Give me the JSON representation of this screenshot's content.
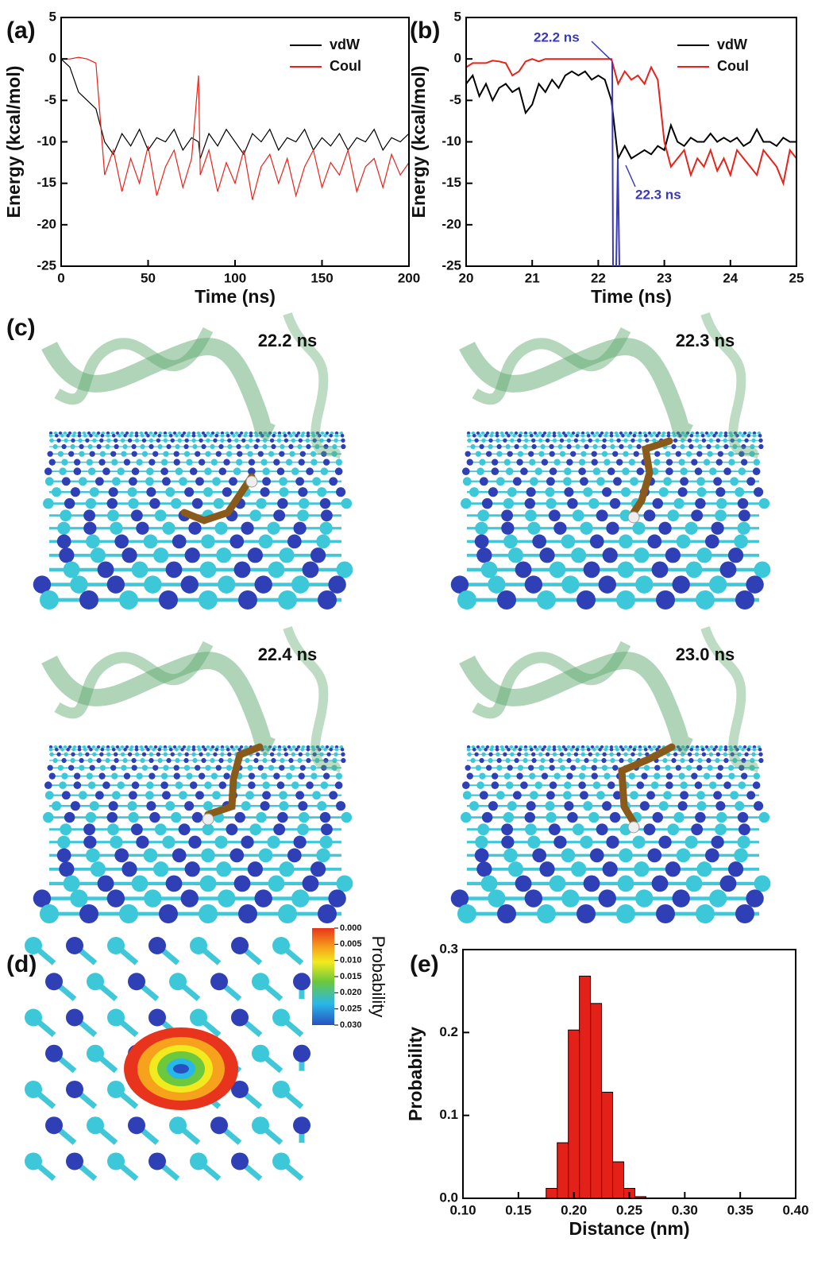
{
  "chart_data": [
    {
      "type": "line",
      "panel_label": "(a)",
      "xlabel": "Time (ns)",
      "ylabel": "Energy (kcal/mol)",
      "x": [
        0,
        5,
        10,
        15,
        20,
        25,
        30,
        35,
        40,
        45,
        50,
        55,
        60,
        65,
        70,
        75,
        79,
        80,
        85,
        90,
        95,
        100,
        105,
        110,
        115,
        120,
        125,
        130,
        135,
        140,
        145,
        150,
        155,
        160,
        165,
        170,
        175,
        180,
        185,
        190,
        195,
        200
      ],
      "series": [
        {
          "name": "vdW",
          "color": "#000000",
          "values": [
            0,
            -1,
            -4,
            -5,
            -6,
            -10,
            -11.5,
            -9,
            -10.5,
            -8.5,
            -11,
            -9.5,
            -10,
            -8.5,
            -11,
            -9.5,
            -10,
            -12,
            -9,
            -10.5,
            -8.5,
            -10,
            -11.5,
            -9,
            -10,
            -8.5,
            -11,
            -9.5,
            -10,
            -8.5,
            -11,
            -9.5,
            -10.5,
            -9,
            -11,
            -9.5,
            -10,
            -8.5,
            -11,
            -9.5,
            -10,
            -9
          ]
        },
        {
          "name": "Coul",
          "color": "#e8221a",
          "values": [
            0,
            0,
            0.2,
            0,
            -0.5,
            -14,
            -11,
            -16,
            -12,
            -15,
            -10.5,
            -16.5,
            -13,
            -11,
            -15.5,
            -12,
            -2,
            -14,
            -11,
            -16,
            -12.5,
            -15,
            -11,
            -17,
            -13,
            -11.5,
            -15,
            -12,
            -16.5,
            -13,
            -11,
            -15.5,
            -12.5,
            -14,
            -11,
            -16,
            -13,
            -12,
            -15.5,
            -11.5,
            -14,
            -12.5
          ]
        }
      ],
      "xlim": [
        0,
        200
      ],
      "xticks": [
        0,
        50,
        100,
        150,
        200
      ],
      "ylim": [
        -25,
        5
      ],
      "yticks": [
        -25,
        -20,
        -15,
        -10,
        -5,
        0,
        5
      ],
      "legend": "upper right"
    },
    {
      "type": "line",
      "panel_label": "(b)",
      "xlabel": "Time (ns)",
      "ylabel": "Energy (kcal/mol)",
      "x": [
        20,
        20.1,
        20.2,
        20.3,
        20.4,
        20.5,
        20.6,
        20.7,
        20.8,
        20.9,
        21,
        21.1,
        21.2,
        21.3,
        21.4,
        21.5,
        21.6,
        21.7,
        21.8,
        21.9,
        22,
        22.1,
        22.2,
        22.3,
        22.4,
        22.5,
        22.6,
        22.7,
        22.8,
        22.9,
        23,
        23.1,
        23.2,
        23.3,
        23.4,
        23.5,
        23.6,
        23.7,
        23.8,
        23.9,
        24,
        24.1,
        24.2,
        24.3,
        24.4,
        24.5,
        24.6,
        24.7,
        24.8,
        24.9,
        25
      ],
      "series": [
        {
          "name": "vdW",
          "color": "#000000",
          "values": [
            -3,
            -2,
            -4.5,
            -3,
            -5,
            -3.5,
            -3,
            -4,
            -3.5,
            -6.5,
            -5.5,
            -3,
            -4,
            -2.5,
            -3.5,
            -2,
            -1.5,
            -2,
            -1.5,
            -2.5,
            -2,
            -2.5,
            -5,
            -12,
            -10.5,
            -12,
            -11.5,
            -11,
            -11.5,
            -10.5,
            -11,
            -8,
            -10,
            -10.5,
            -9.5,
            -10,
            -10,
            -9,
            -10,
            -9.5,
            -10,
            -9.5,
            -10.5,
            -10,
            -8.5,
            -10,
            -10,
            -10.5,
            -9.5,
            -10,
            -10
          ]
        },
        {
          "name": "Coul",
          "color": "#e8221a",
          "values": [
            -1,
            -0.5,
            -0.5,
            -0.5,
            -0.2,
            -0.3,
            -0.5,
            -2,
            -1.5,
            -0.3,
            0,
            -0.3,
            0,
            0,
            0,
            0,
            0,
            0,
            0,
            0,
            0,
            0,
            0,
            -3,
            -1.5,
            -2.5,
            -2,
            -3,
            -1,
            -2.5,
            -10,
            -13,
            -12,
            -11,
            -14,
            -12,
            -13,
            -11,
            -13.5,
            -12,
            -14,
            -11,
            -12,
            -13,
            -14,
            -11,
            -12,
            -13,
            -15,
            -11,
            -12
          ]
        }
      ],
      "annotations": [
        "22.2 ns",
        "22.3 ns"
      ],
      "xlim": [
        20,
        25
      ],
      "xticks": [
        20,
        21,
        22,
        23,
        24,
        25
      ],
      "ylim": [
        -25,
        5
      ],
      "yticks": [
        -25,
        -20,
        -15,
        -10,
        -5,
        0,
        5
      ],
      "legend": "upper right"
    },
    {
      "type": "histogram",
      "panel_label": "(e)",
      "xlabel": "Distance (nm)",
      "ylabel": "Probability",
      "color": "#e32119",
      "bins": [
        0.175,
        0.185,
        0.195,
        0.205,
        0.215,
        0.225,
        0.235,
        0.245,
        0.255,
        0.265
      ],
      "values": [
        0.012,
        0.067,
        0.203,
        0.268,
        0.235,
        0.128,
        0.044,
        0.012,
        0.002
      ],
      "xlim": [
        0.1,
        0.4
      ],
      "xticks": [
        {
          "value": 0.1,
          "label": "0.10"
        },
        {
          "value": 0.15,
          "label": "0.15"
        },
        {
          "value": 0.2,
          "label": "0.20"
        },
        {
          "value": 0.25,
          "label": "0.25"
        },
        {
          "value": 0.3,
          "label": "0.30"
        },
        {
          "value": 0.35,
          "label": "0.35"
        },
        {
          "value": 0.4,
          "label": "0.40"
        }
      ],
      "ylim": [
        0,
        0.3
      ],
      "yticks": [
        {
          "value": 0,
          "label": "0.0"
        },
        {
          "value": 0.1,
          "label": "0.1"
        },
        {
          "value": 0.2,
          "label": "0.2"
        },
        {
          "value": 0.3,
          "label": "0.3"
        }
      ]
    }
  ],
  "snapshots": {
    "panel_label": "(c)",
    "labels": [
      "22.2 ns",
      "22.3 ns",
      "22.4 ns",
      "23.0 ns"
    ]
  },
  "map": {
    "panel_label": "(d)",
    "colorbar_label": "Probability",
    "colorbar_ticks": [
      {
        "value": 0,
        "label": "0.000"
      },
      {
        "value": 0.005,
        "label": "0.005"
      },
      {
        "value": 0.01,
        "label": "0.010"
      },
      {
        "value": 0.015,
        "label": "0.015"
      },
      {
        "value": 0.02,
        "label": "0.020"
      },
      {
        "value": 0.025,
        "label": "0.025"
      },
      {
        "value": 0.03,
        "label": "0.030"
      }
    ]
  }
}
